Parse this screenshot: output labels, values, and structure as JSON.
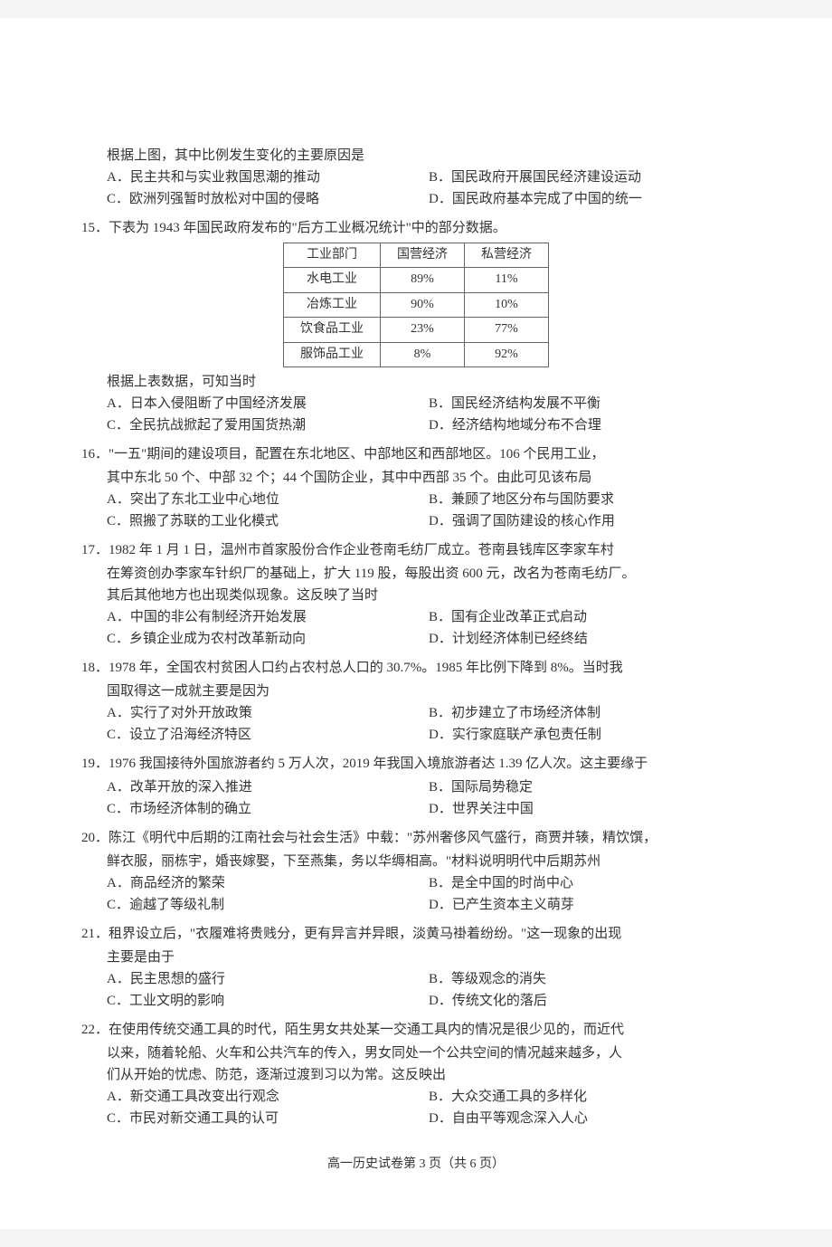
{
  "q14_tail": {
    "stem": "根据上图，其中比例发生变化的主要原因是",
    "A": "A．民主共和与实业救国思潮的推动",
    "B": "B．国民政府开展国民经济建设运动",
    "C": "C．欧洲列强暂时放松对中国的侵略",
    "D": "D．国民政府基本完成了中国的统一"
  },
  "q15": {
    "num": "15．",
    "stem1": "下表为 1943 年国民政府发布的\"后方工业概况统计\"中的部分数据。",
    "table": {
      "headers": [
        "工业部门",
        "国营经济",
        "私营经济"
      ],
      "rows": [
        [
          "水电工业",
          "89%",
          "11%"
        ],
        [
          "冶炼工业",
          "90%",
          "10%"
        ],
        [
          "饮食品工业",
          "23%",
          "77%"
        ],
        [
          "服饰品工业",
          "8%",
          "92%"
        ]
      ]
    },
    "stem2": "根据上表数据，可知当时",
    "A": "A．日本入侵阻断了中国经济发展",
    "B": "B．国民经济结构发展不平衡",
    "C": "C．全民抗战掀起了爱用国货热潮",
    "D": "D．经济结构地域分布不合理"
  },
  "q16": {
    "num": "16．",
    "stem1": "\"一五\"期间的建设项目，配置在东北地区、中部地区和西部地区。106 个民用工业，",
    "stem2": "其中东北 50 个、中部 32 个；44 个国防企业，其中中西部 35 个。由此可见该布局",
    "A": "A．突出了东北工业中心地位",
    "B": "B．兼顾了地区分布与国防要求",
    "C": "C．照搬了苏联的工业化模式",
    "D": "D．强调了国防建设的核心作用"
  },
  "q17": {
    "num": "17．",
    "stem1": "1982 年 1 月 1 日，温州市首家股份合作企业苍南毛纺厂成立。苍南县钱库区李家车村",
    "stem2": "在筹资创办李家车针织厂的基础上，扩大 119 股，每股出资 600 元，改名为苍南毛纺厂。",
    "stem3": "其后其他地方也出现类似现象。这反映了当时",
    "A": "A．中国的非公有制经济开始发展",
    "B": "B．国有企业改革正式启动",
    "C": "C．乡镇企业成为农村改革新动向",
    "D": "D．计划经济体制已经终结"
  },
  "q18": {
    "num": "18．",
    "stem1": "1978 年，全国农村贫困人口约占农村总人口的 30.7%。1985 年比例下降到 8%。当时我",
    "stem2": "国取得这一成就主要是因为",
    "A": "A．实行了对外开放政策",
    "B": "B．初步建立了市场经济体制",
    "C": "C．设立了沿海经济特区",
    "D": "D．实行家庭联产承包责任制"
  },
  "q19": {
    "num": "19．",
    "stem1": "1976 我国接待外国旅游者约 5 万人次，2019 年我国入境旅游者达 1.39 亿人次。这主要缘于",
    "A": "A．改革开放的深入推进",
    "B": "B．国际局势稳定",
    "C": "C．市场经济体制的确立",
    "D": "D．世界关注中国"
  },
  "q20": {
    "num": "20．",
    "stem1": "陈江《明代中后期的江南社会与社会生活》中载：\"苏州奢侈风气盛行，商贾并辏，精饮馔，",
    "stem2": "鲜衣服，丽栋宇，婚丧嫁娶，下至燕集，务以华缛相高。\"材料说明明代中后期苏州",
    "A": "A．商品经济的繁荣",
    "B": "B．是全中国的时尚中心",
    "C": "C．逾越了等级礼制",
    "D": "D．已产生资本主义萌芽"
  },
  "q21": {
    "num": "21．",
    "stem1": "租界设立后，\"衣履难将贵贱分，更有异言并异眼，淡黄马褂着纷纷。\"这一现象的出现",
    "stem2": "主要是由于",
    "A": "A．民主思想的盛行",
    "B": "B．等级观念的消失",
    "C": "C．工业文明的影响",
    "D": "D．传统文化的落后"
  },
  "q22": {
    "num": "22．",
    "stem1": "在使用传统交通工具的时代，陌生男女共处某一交通工具内的情况是很少见的，而近代",
    "stem2": "以来，随着轮船、火车和公共汽车的传入，男女同处一个公共空间的情况越来越多，人",
    "stem3": "们从开始的忧虑、防范，逐渐过渡到习以为常。这反映出",
    "A": "A．新交通工具改变出行观念",
    "B": "B．大众交通工具的多样化",
    "C": "C．市民对新交通工具的认可",
    "D": "D．自由平等观念深入人心"
  },
  "footer": "高一历史试卷第 3 页（共 6 页）"
}
